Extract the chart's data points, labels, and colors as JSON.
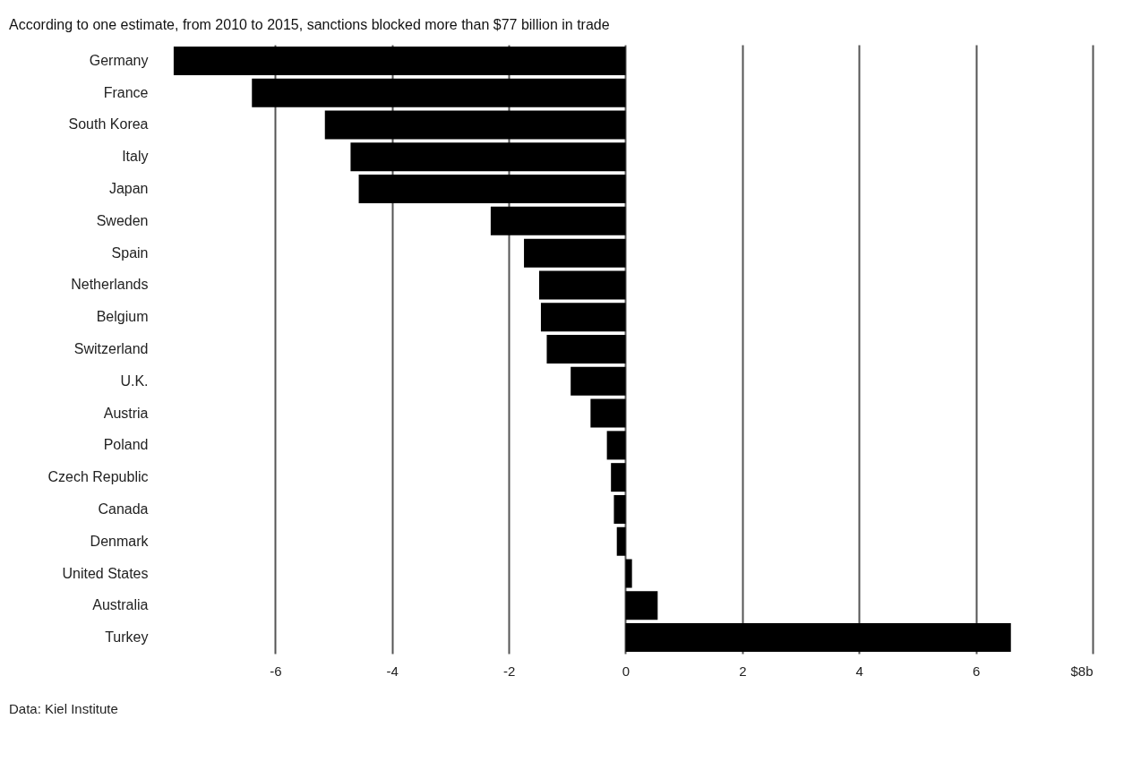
{
  "chart_data": {
    "type": "bar",
    "orientation": "horizontal",
    "title": "According to one estimate, from 2010 to 2015, sanctions blocked more than $77 billion in trade",
    "categories": [
      "Germany",
      "France",
      "South Korea",
      "Italy",
      "Japan",
      "Sweden",
      "Spain",
      "Netherlands",
      "Belgium",
      "Switzerland",
      "U.K.",
      "Austria",
      "Poland",
      "Czech Republic",
      "Canada",
      "Denmark",
      "United States",
      "Australia",
      "Turkey"
    ],
    "values": [
      -7.74,
      -6.4,
      -5.15,
      -4.71,
      -4.57,
      -2.31,
      -1.74,
      -1.48,
      -1.45,
      -1.35,
      -0.94,
      -0.6,
      -0.32,
      -0.25,
      -0.2,
      -0.15,
      0.11,
      0.55,
      6.6
    ],
    "color": "#000000",
    "xlim": [
      -7.8,
      8
    ],
    "xticks": [
      -6,
      -4,
      -2,
      0,
      2,
      4,
      6,
      {
        "value": 8,
        "label": "$8b"
      }
    ],
    "grid": "x",
    "annotations": [
      "Data: Kiel Institute"
    ]
  }
}
